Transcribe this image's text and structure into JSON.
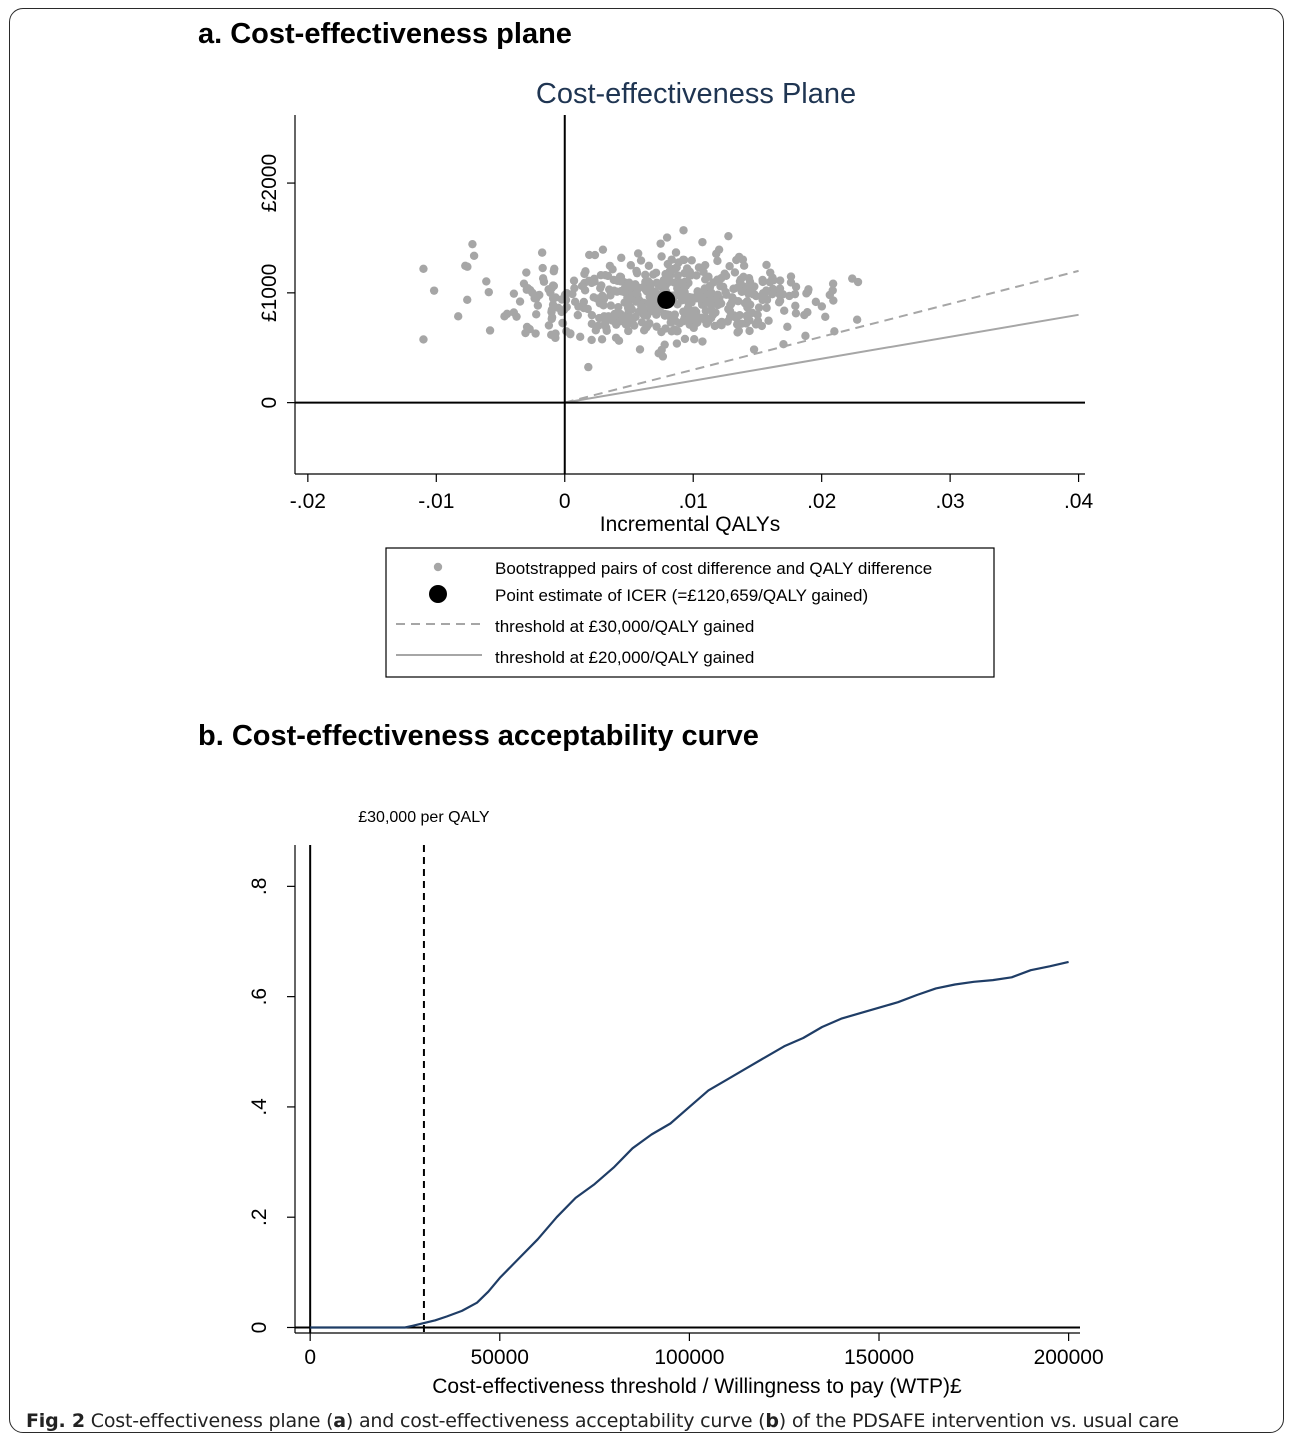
{
  "panel_a": {
    "heading": "a.  Cost-effectiveness plane"
  },
  "panel_b": {
    "heading": "b. Cost-effectiveness acceptability curve"
  },
  "caption": {
    "label": "Fig. 2",
    "text_1": " Cost-effectiveness plane (",
    "a": "a",
    "text_2": ") and cost-effectiveness acceptability curve (",
    "b": "b",
    "text_3": ") of the PDSAFE intervention vs. usual care"
  },
  "colors": {
    "bootstrap_points": "#a6a6a6",
    "point_estimate": "#000000",
    "threshold_30k": "#a6a6a6",
    "threshold_20k": "#a6a6a6",
    "ceac_line": "#1f3d66",
    "plane_title": "#1f3552"
  },
  "chart_data": [
    {
      "type": "scatter",
      "title": "Cost-effectiveness Plane",
      "xlabel": "Incremental QALYs",
      "ylabel": "",
      "xlim": [
        -0.021,
        0.0405
      ],
      "ylim": [
        -650,
        2620
      ],
      "x_ticks": [
        -0.02,
        -0.01,
        0,
        0.01,
        0.02,
        0.03,
        0.04
      ],
      "x_tick_labels": [
        "-.02",
        "-.01",
        "0",
        ".01",
        ".02",
        ".03",
        ".04"
      ],
      "y_ticks": [
        0,
        1000,
        2000
      ],
      "y_tick_labels": [
        "0",
        "£1000",
        "£2000"
      ],
      "grid": false,
      "bootstrap_cloud": {
        "n": 520,
        "x_mean": 0.0075,
        "x_sd": 0.0062,
        "y_mean": 950,
        "y_sd": 190,
        "x_range": [
          -0.011,
          0.0265
        ],
        "y_range": [
          290,
          1570
        ]
      },
      "point_estimate": {
        "x": 0.0079,
        "y": 935
      },
      "thresholds": [
        {
          "name": "threshold at £30,000/QALY gained",
          "slope": 30000,
          "style": "dashed"
        },
        {
          "name": "threshold at £20,000/QALY gained",
          "slope": 20000,
          "style": "solid"
        }
      ],
      "legend": {
        "placement": "bottom",
        "entries": [
          {
            "label": "Bootstrapped pairs of cost difference and QALY difference",
            "symbol": "small-dot"
          },
          {
            "label": "Point estimate of ICER (=£120,659/QALY gained)",
            "symbol": "large-dot"
          },
          {
            "label": "threshold at £30,000/QALY gained",
            "symbol": "dashed-line"
          },
          {
            "label": "threshold at £20,000/QALY gained",
            "symbol": "solid-line"
          }
        ]
      }
    },
    {
      "type": "line",
      "title": "",
      "xlabel": "Cost-effectiveness threshold / Willingness to pay (WTP)£",
      "ylabel": "",
      "xlim": [
        -4000,
        203000
      ],
      "ylim": [
        -0.01,
        0.875
      ],
      "x_ticks": [
        0,
        50000,
        100000,
        150000,
        200000
      ],
      "x_tick_labels": [
        "0",
        "50000",
        "100000",
        "150000",
        "200000"
      ],
      "y_ticks": [
        0,
        0.2,
        0.4,
        0.6,
        0.8
      ],
      "y_tick_labels": [
        "0",
        ".2",
        ".4",
        ".6",
        ".8"
      ],
      "grid": false,
      "reference_line": {
        "x": 30000,
        "label": "£30,000 per QALY",
        "style": "dashed"
      },
      "series": [
        {
          "x": [
            0,
            10000,
            20000,
            25000,
            27000,
            30000,
            33000,
            36000,
            40000,
            44000,
            47000,
            50000,
            55000,
            60000,
            65000,
            70000,
            75000,
            80000,
            85000,
            90000,
            95000,
            100000,
            105000,
            110000,
            115000,
            120000,
            125000,
            130000,
            135000,
            140000,
            145000,
            150000,
            155000,
            160000,
            165000,
            170000,
            175000,
            180000,
            185000,
            190000,
            195000,
            200000
          ],
          "values": [
            0,
            0,
            0,
            0,
            0.003,
            0.008,
            0.013,
            0.02,
            0.03,
            0.045,
            0.065,
            0.09,
            0.125,
            0.16,
            0.2,
            0.235,
            0.26,
            0.29,
            0.325,
            0.35,
            0.37,
            0.4,
            0.43,
            0.45,
            0.47,
            0.49,
            0.51,
            0.525,
            0.545,
            0.56,
            0.57,
            0.58,
            0.59,
            0.603,
            0.615,
            0.622,
            0.627,
            0.63,
            0.635,
            0.648,
            0.655,
            0.663
          ]
        }
      ]
    }
  ]
}
